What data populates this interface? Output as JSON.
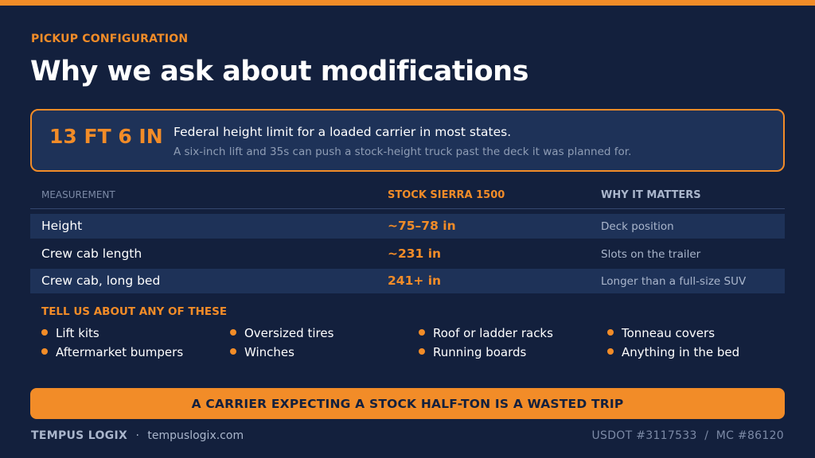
{
  "header": {
    "eyebrow": "PICKUP CONFIGURATION",
    "title": "Why we ask about modifications"
  },
  "callout": {
    "big_value": "13 FT 6 IN",
    "main_text": "Federal height limit for a loaded carrier in most states.",
    "sub_text": "A six-inch lift and 35s can push a stock-height truck past the deck it was planned for."
  },
  "table": {
    "headers": [
      "MEASUREMENT",
      "STOCK SIERRA 1500",
      "WHY IT MATTERS"
    ],
    "rows": [
      {
        "measurement": "Height",
        "stock": "~75–78 in",
        "why": "Deck position"
      },
      {
        "measurement": "Crew cab length",
        "stock": "~231 in",
        "why": "Slots on the trailer"
      },
      {
        "measurement": "Crew cab, long bed",
        "stock": "241+ in",
        "why": "Longer than a full-size SUV"
      }
    ]
  },
  "modifications": {
    "heading": "TELL US ABOUT ANY OF THESE",
    "items": [
      "Lift kits",
      "Oversized tires",
      "Roof or ladder racks",
      "Tonneau covers",
      "Aftermarket bumpers",
      "Winches",
      "Running boards",
      "Anything in the bed"
    ]
  },
  "banner": {
    "text": "A CARRIER EXPECTING A STOCK HALF-TON IS A WASTED TRIP"
  },
  "footer": {
    "brand": "TEMPUS LOGIX",
    "separator": "·",
    "website": "tempuslogix.com",
    "credentials": "USDOT #3117533  /  MC #86120"
  },
  "colors": {
    "background": "#13203d",
    "accent": "#f28c28",
    "panel": "#1e3258",
    "muted_text": "#aab6cc"
  }
}
